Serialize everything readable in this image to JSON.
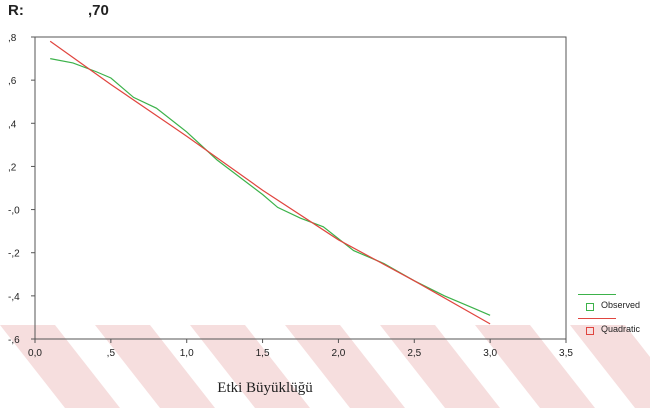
{
  "header": {
    "r_label": "R:",
    "r_value": ",70"
  },
  "colors": {
    "observed": "#3cb24a",
    "quadratic": "#e0453f",
    "watermark": "#f6dede"
  },
  "chart_data": {
    "type": "line",
    "xlabel": "Etki Büyüklüğü",
    "ylabel": "",
    "xlim": [
      0,
      3.5
    ],
    "ylim": [
      -0.6,
      0.8
    ],
    "x_ticks": [
      0,
      0.5,
      1.0,
      1.5,
      2.0,
      2.5,
      3.0,
      3.5
    ],
    "x_tick_labels": [
      "0,0",
      ",5",
      "1,0",
      "1,5",
      "2,0",
      "2,5",
      "3,0",
      "3,5"
    ],
    "y_ticks": [
      0.8,
      0.6,
      0.4,
      0.2,
      0.0,
      -0.2,
      -0.4,
      -0.6
    ],
    "y_tick_labels": [
      ",8",
      ",6",
      ",4",
      ",2",
      "-,0",
      "-,2",
      "-,4",
      "-,6"
    ],
    "legend_position": "bottom-right, outside plot",
    "series": [
      {
        "name": "Observed",
        "x": [
          0.1,
          0.25,
          0.4,
          0.5,
          0.65,
          0.8,
          1.0,
          1.2,
          1.5,
          1.6,
          1.75,
          1.9,
          2.1,
          2.3,
          2.5,
          2.7,
          2.9,
          3.0
        ],
        "y": [
          0.7,
          0.68,
          0.64,
          0.61,
          0.52,
          0.47,
          0.36,
          0.23,
          0.07,
          0.01,
          -0.04,
          -0.08,
          -0.19,
          -0.25,
          -0.33,
          -0.4,
          -0.46,
          -0.49
        ]
      },
      {
        "name": "Quadratic",
        "x": [
          0.1,
          0.5,
          1.0,
          1.5,
          2.0,
          2.5,
          3.0
        ],
        "y": [
          0.78,
          0.58,
          0.34,
          0.09,
          -0.14,
          -0.33,
          -0.53
        ]
      }
    ]
  }
}
